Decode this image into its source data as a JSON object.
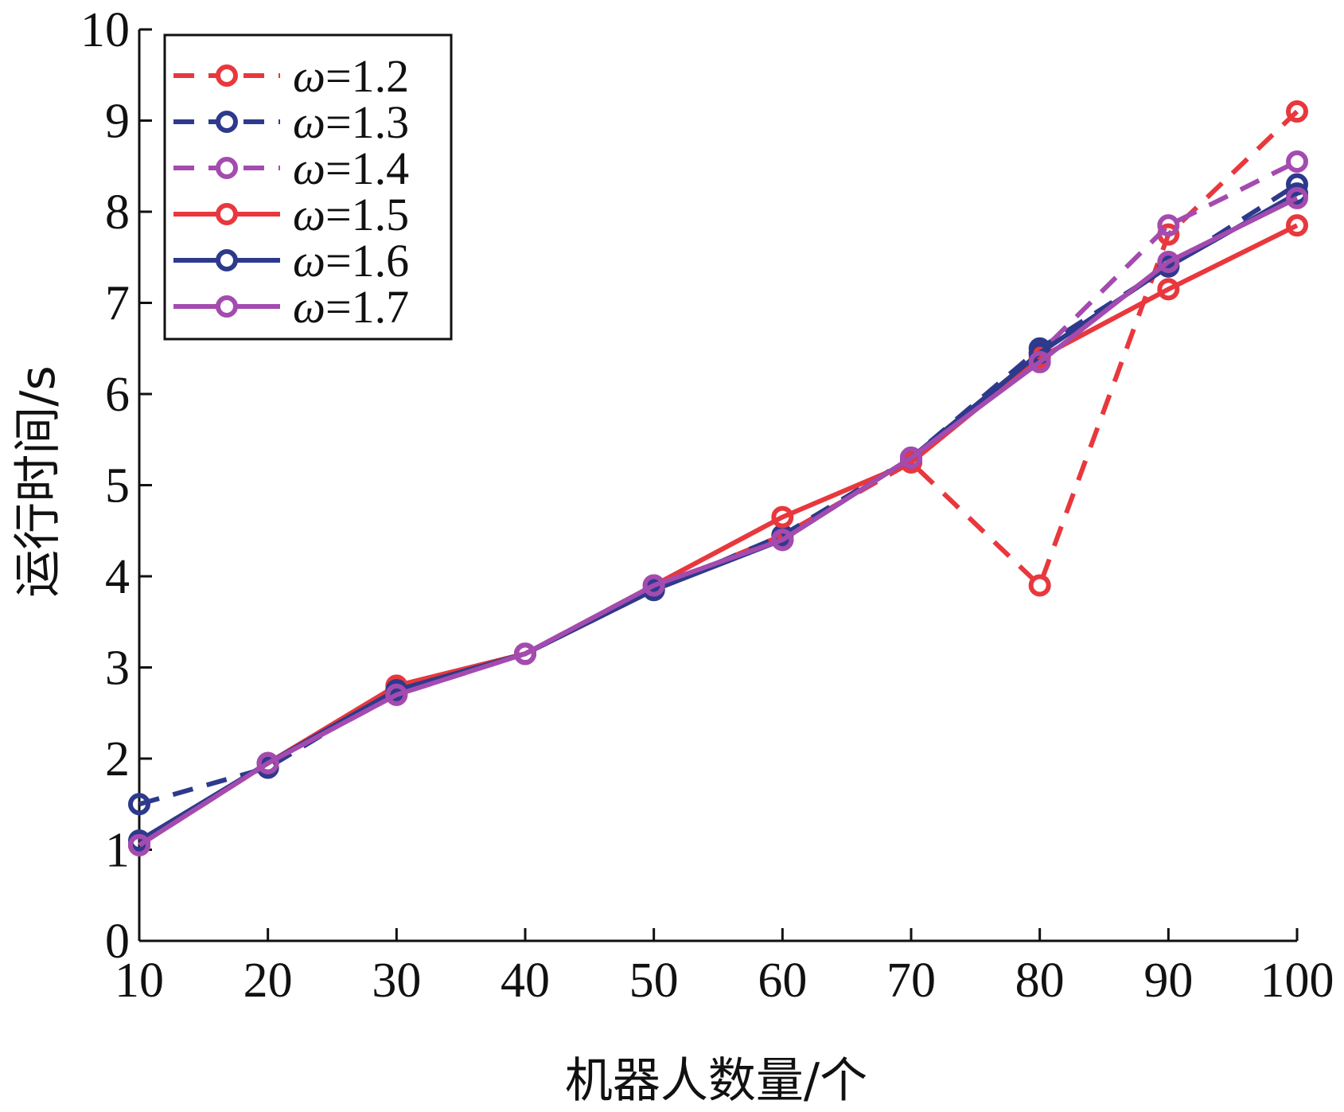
{
  "chart_data": {
    "type": "line",
    "xlabel": "机器人数量/个",
    "ylabel": "运行时间/s",
    "xlim": [
      10,
      100
    ],
    "ylim": [
      0,
      10
    ],
    "xticks": [
      10,
      20,
      30,
      40,
      50,
      60,
      70,
      80,
      90,
      100
    ],
    "yticks": [
      0,
      1,
      2,
      3,
      4,
      5,
      6,
      7,
      8,
      9,
      10
    ],
    "grid": false,
    "legend_position": "top-left",
    "x": [
      10,
      20,
      30,
      40,
      50,
      60,
      70,
      80,
      90,
      100
    ],
    "series": [
      {
        "name": "ω=1.2",
        "symbol": "ω",
        "value_text": "=1.2",
        "color": "#e8383d",
        "dash": "dashed",
        "values": [
          1.05,
          1.95,
          2.75,
          3.15,
          3.85,
          4.45,
          5.25,
          3.9,
          7.75,
          9.1
        ]
      },
      {
        "name": "ω=1.3",
        "symbol": "ω",
        "value_text": "=1.3",
        "color": "#2d3a8c",
        "dash": "dashed",
        "values": [
          1.5,
          1.9,
          2.75,
          3.15,
          3.85,
          4.45,
          5.3,
          6.5,
          7.4,
          8.3
        ]
      },
      {
        "name": "ω=1.4",
        "symbol": "ω",
        "value_text": "=1.4",
        "color": "#a44bb0",
        "dash": "dashed",
        "values": [
          1.05,
          1.95,
          2.7,
          3.15,
          3.9,
          4.4,
          5.3,
          6.45,
          7.85,
          8.55
        ]
      },
      {
        "name": "ω=1.5",
        "symbol": "ω",
        "value_text": "=1.5",
        "color": "#e8383d",
        "dash": "solid",
        "values": [
          1.05,
          1.95,
          2.8,
          3.15,
          3.9,
          4.65,
          5.25,
          6.4,
          7.15,
          7.85
        ]
      },
      {
        "name": "ω=1.6",
        "symbol": "ω",
        "value_text": "=1.6",
        "color": "#2d3a8c",
        "dash": "solid",
        "values": [
          1.1,
          1.95,
          2.75,
          3.15,
          3.85,
          4.4,
          5.3,
          6.45,
          7.4,
          8.2
        ]
      },
      {
        "name": "ω=1.7",
        "symbol": "ω",
        "value_text": "=1.7",
        "color": "#a44bb0",
        "dash": "solid",
        "values": [
          1.05,
          1.95,
          2.7,
          3.15,
          3.9,
          4.4,
          5.3,
          6.35,
          7.45,
          8.15
        ]
      }
    ]
  }
}
